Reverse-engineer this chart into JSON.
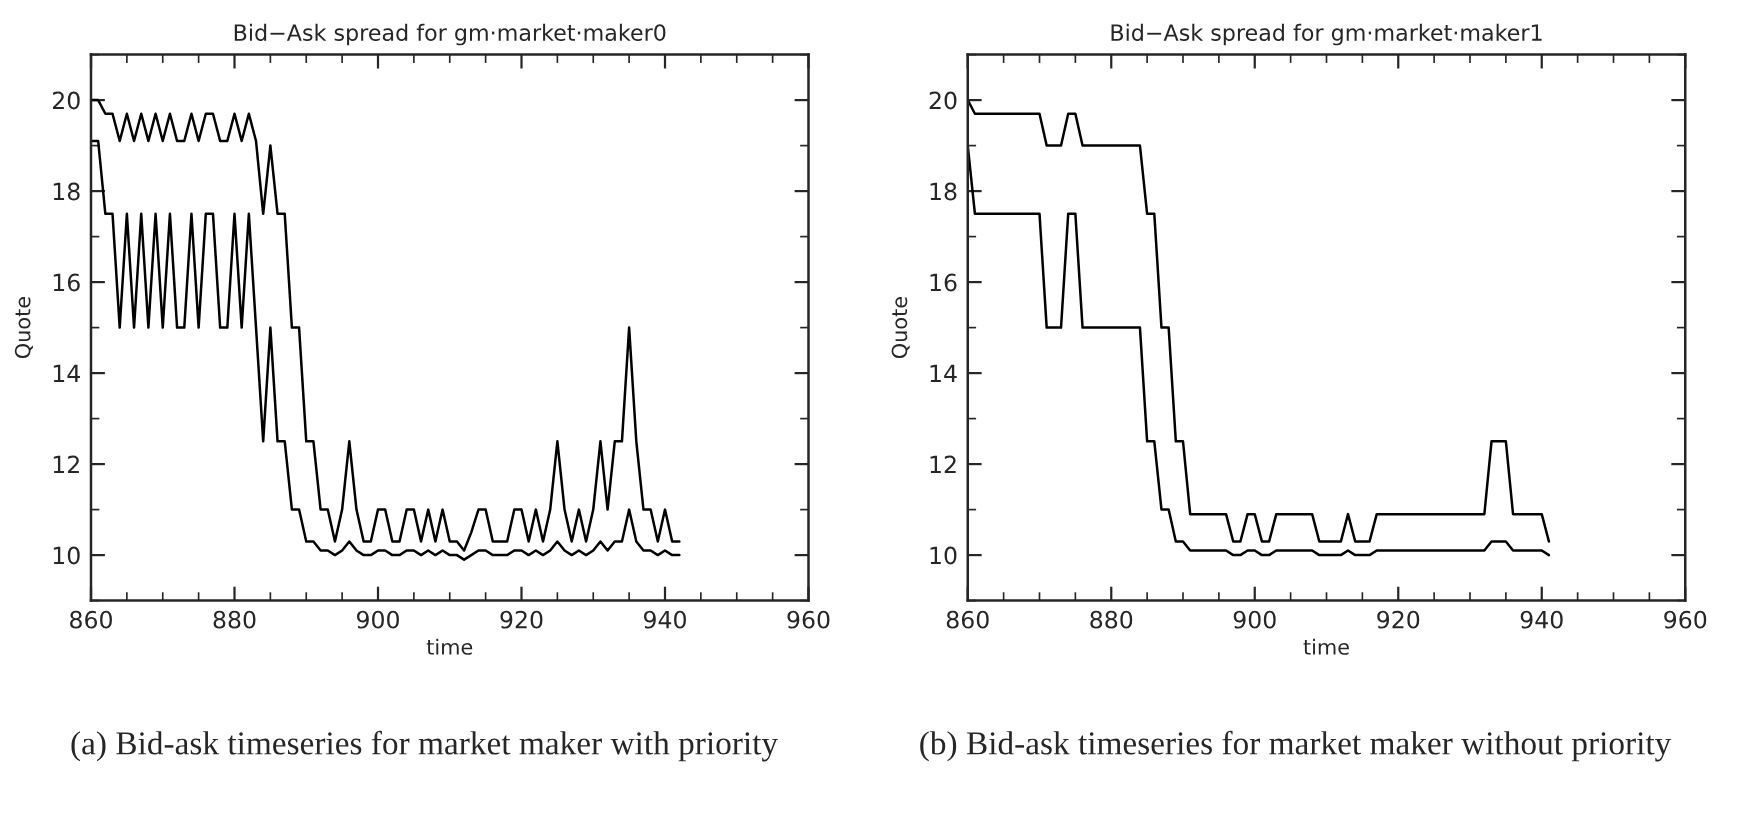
{
  "chart_data": [
    {
      "type": "line",
      "title": "Bid−Ask spread for gm·market·maker0",
      "xlabel": "time",
      "ylabel": "Quote",
      "x": [
        860,
        861,
        862,
        863,
        864,
        865,
        866,
        867,
        868,
        869,
        870,
        871,
        872,
        873,
        874,
        875,
        876,
        877,
        878,
        879,
        880,
        881,
        882,
        883,
        884,
        885,
        886,
        887,
        888,
        889,
        890,
        891,
        892,
        893,
        894,
        895,
        896,
        897,
        898,
        899,
        900,
        901,
        902,
        903,
        904,
        905,
        906,
        907,
        908,
        909,
        910,
        911,
        912,
        913,
        914,
        915,
        916,
        917,
        918,
        919,
        920,
        921,
        922,
        923,
        924,
        925,
        926,
        927,
        928,
        929,
        930,
        931,
        932,
        933,
        934,
        935,
        936,
        937,
        938,
        939,
        940,
        941,
        942
      ],
      "series": [
        {
          "color": "#000000",
          "values": [
            20,
            20,
            19.7,
            19.7,
            19.1,
            19.7,
            19.1,
            19.7,
            19.1,
            19.7,
            19.1,
            19.7,
            19.1,
            19.1,
            19.7,
            19.1,
            19.7,
            19.7,
            19.1,
            19.1,
            19.7,
            19.1,
            19.7,
            19.1,
            17.5,
            19,
            17.5,
            17.5,
            15,
            15,
            12.5,
            12.5,
            11,
            11,
            10.3,
            11,
            12.5,
            11,
            10.3,
            10.3,
            11,
            11,
            10.3,
            10.3,
            11,
            11,
            10.3,
            11,
            10.3,
            11,
            10.3,
            10.3,
            10.1,
            10.5,
            11,
            11,
            10.3,
            10.3,
            10.3,
            11,
            11,
            10.3,
            11,
            10.3,
            11,
            12.5,
            11,
            10.3,
            11,
            10.3,
            11,
            12.5,
            11,
            12.5,
            12.5,
            15,
            12.5,
            11,
            11,
            10.3,
            11,
            10.3,
            10.3
          ]
        },
        {
          "color": "#000000",
          "values": [
            19.1,
            19.1,
            17.5,
            17.5,
            15,
            17.5,
            15,
            17.5,
            15,
            17.5,
            15,
            17.5,
            15,
            15,
            17.5,
            15,
            17.5,
            17.5,
            15,
            15,
            17.5,
            15,
            17.5,
            15,
            12.5,
            15,
            12.5,
            12.5,
            11,
            11,
            10.3,
            10.3,
            10.1,
            10.1,
            10,
            10.1,
            10.3,
            10.1,
            10,
            10,
            10.1,
            10.1,
            10,
            10,
            10.1,
            10.1,
            10,
            10.1,
            10,
            10.1,
            10,
            10,
            9.9,
            10,
            10.1,
            10.1,
            10,
            10,
            10,
            10.1,
            10.1,
            10,
            10.1,
            10,
            10.1,
            10.3,
            10.1,
            10,
            10.1,
            10,
            10.1,
            10.3,
            10.1,
            10.3,
            10.3,
            11,
            10.3,
            10.1,
            10.1,
            10,
            10.1,
            10,
            10
          ]
        }
      ],
      "xlim": [
        860,
        960
      ],
      "ylim": [
        9,
        21
      ],
      "xticks": [
        860,
        880,
        900,
        920,
        940,
        960
      ],
      "yticks": [
        10,
        12,
        14,
        16,
        18,
        20
      ],
      "grid": false,
      "legend": false,
      "annotations": [
        "(a) Bid-ask timeseries for market maker with priority"
      ]
    },
    {
      "type": "line",
      "title": "Bid−Ask spread for gm·market·maker1",
      "xlabel": "time",
      "ylabel": "Quote",
      "x": [
        860,
        861,
        862,
        863,
        864,
        865,
        866,
        867,
        868,
        869,
        870,
        871,
        872,
        873,
        874,
        875,
        876,
        877,
        878,
        879,
        880,
        881,
        882,
        883,
        884,
        885,
        886,
        887,
        888,
        889,
        890,
        891,
        892,
        893,
        894,
        895,
        896,
        897,
        898,
        899,
        900,
        901,
        902,
        903,
        904,
        905,
        906,
        907,
        908,
        909,
        910,
        911,
        912,
        913,
        914,
        915,
        916,
        917,
        918,
        919,
        920,
        921,
        922,
        923,
        924,
        925,
        926,
        927,
        928,
        929,
        930,
        931,
        932,
        933,
        934,
        935,
        936,
        937,
        938,
        939,
        940,
        941
      ],
      "series": [
        {
          "color": "#000000",
          "values": [
            20,
            19.7,
            19.7,
            19.7,
            19.7,
            19.7,
            19.7,
            19.7,
            19.7,
            19.7,
            19.7,
            19,
            19,
            19,
            19.7,
            19.7,
            19,
            19,
            19,
            19,
            19,
            19,
            19,
            19,
            19,
            17.5,
            17.5,
            15,
            15,
            12.5,
            12.5,
            10.9,
            10.9,
            10.9,
            10.9,
            10.9,
            10.9,
            10.3,
            10.3,
            10.9,
            10.9,
            10.3,
            10.3,
            10.9,
            10.9,
            10.9,
            10.9,
            10.9,
            10.9,
            10.3,
            10.3,
            10.3,
            10.3,
            10.9,
            10.3,
            10.3,
            10.3,
            10.9,
            10.9,
            10.9,
            10.9,
            10.9,
            10.9,
            10.9,
            10.9,
            10.9,
            10.9,
            10.9,
            10.9,
            10.9,
            10.9,
            10.9,
            10.9,
            12.5,
            12.5,
            12.5,
            10.9,
            10.9,
            10.9,
            10.9,
            10.9,
            10.3
          ]
        },
        {
          "color": "#000000",
          "values": [
            19,
            17.5,
            17.5,
            17.5,
            17.5,
            17.5,
            17.5,
            17.5,
            17.5,
            17.5,
            17.5,
            15,
            15,
            15,
            17.5,
            17.5,
            15,
            15,
            15,
            15,
            15,
            15,
            15,
            15,
            15,
            12.5,
            12.5,
            11,
            11,
            10.3,
            10.3,
            10.1,
            10.1,
            10.1,
            10.1,
            10.1,
            10.1,
            10,
            10,
            10.1,
            10.1,
            10,
            10,
            10.1,
            10.1,
            10.1,
            10.1,
            10.1,
            10.1,
            10,
            10,
            10,
            10,
            10.1,
            10,
            10,
            10,
            10.1,
            10.1,
            10.1,
            10.1,
            10.1,
            10.1,
            10.1,
            10.1,
            10.1,
            10.1,
            10.1,
            10.1,
            10.1,
            10.1,
            10.1,
            10.1,
            10.3,
            10.3,
            10.3,
            10.1,
            10.1,
            10.1,
            10.1,
            10.1,
            10
          ]
        }
      ],
      "xlim": [
        860,
        960
      ],
      "ylim": [
        9,
        21
      ],
      "xticks": [
        860,
        880,
        900,
        920,
        940,
        960
      ],
      "yticks": [
        10,
        12,
        14,
        16,
        18,
        20
      ],
      "grid": false,
      "legend": false,
      "annotations": [
        "(b) Bid-ask timeseries for market maker without priority"
      ]
    }
  ]
}
